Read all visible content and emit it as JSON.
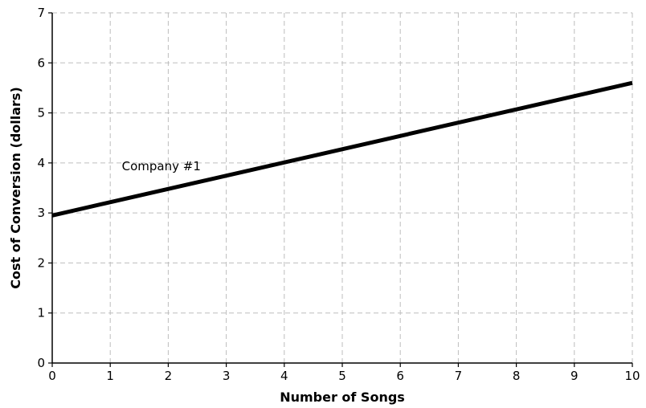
{
  "chart_data": {
    "type": "line",
    "title": "",
    "xlabel": "Number of Songs",
    "ylabel": "Cost of Conversion (dollars)",
    "xlim": [
      0,
      10
    ],
    "ylim": [
      0,
      7
    ],
    "xticks": [
      0,
      1,
      2,
      3,
      4,
      5,
      6,
      7,
      8,
      9,
      10
    ],
    "yticks": [
      0,
      1,
      2,
      3,
      4,
      5,
      6,
      7
    ],
    "grid": true,
    "legend": "none",
    "series": [
      {
        "name": "Company #1",
        "color": "#000000",
        "x": [
          0,
          10
        ],
        "y": [
          2.95,
          5.6
        ]
      }
    ],
    "annotations": [
      {
        "text": "Company #1",
        "x": 1.2,
        "y": 3.85
      }
    ]
  }
}
